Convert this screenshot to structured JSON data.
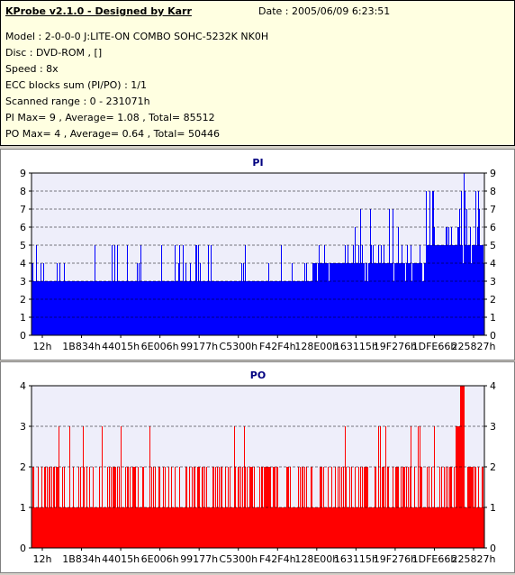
{
  "header": {
    "title": "KProbe v2.1.0 - Designed by Karr",
    "date": "Date : 2005/06/09 6:23:51",
    "lines": [
      "Model : 2-0-0-0 J:LITE-ON COMBO SOHC-5232K NK0H",
      "Disc : DVD-ROM ,  []",
      "Speed : 8x",
      "ECC blocks sum (PI/PO) : 1/1",
      "Scanned range : 0 - 231071h",
      "PI Max= 9 , Average= 1.08 , Total= 85512",
      "PO Max= 4 , Average= 0.64 , Total= 50446"
    ]
  },
  "colors": {
    "pi": "#0000ff",
    "po": "#ff0000",
    "plot_bg": "#eeeefa",
    "grid": "#808080"
  },
  "chart_data": [
    {
      "type": "bar",
      "title": "PI",
      "ylim": [
        0,
        9
      ],
      "yticks": [
        0,
        1,
        2,
        3,
        4,
        5,
        6,
        7,
        8,
        9
      ],
      "xticks": [
        "12h",
        "1B834h",
        "44015h",
        "6E006h",
        "99177h",
        "C5300h",
        "F42F4h",
        "128E00h",
        "163115h",
        "19F276h",
        "1DFE66h",
        "225827h"
      ],
      "xlim_hex": [
        "12h",
        "231071h"
      ],
      "base_level": 3,
      "max": 9,
      "average": 1.08,
      "total": 85512,
      "summary_levels": [
        {
          "from": "12h",
          "to": "163115h",
          "typical": 3,
          "peaks": 5
        },
        {
          "from": "163115h",
          "to": "1DFE66h",
          "typical": 4,
          "peaks": 7
        },
        {
          "from": "1DFE66h",
          "to": "231071h",
          "typical": 5,
          "peaks": 9
        }
      ]
    },
    {
      "type": "bar",
      "title": "PO",
      "ylim": [
        0,
        4
      ],
      "yticks": [
        0,
        1,
        2,
        3,
        4
      ],
      "xticks": [
        "12h",
        "1B834h",
        "44015h",
        "6E006h",
        "99177h",
        "C5300h",
        "F42F4h",
        "128E00h",
        "163115h",
        "19F276h",
        "1DFE66h",
        "225827h"
      ],
      "xlim_hex": [
        "12h",
        "231071h"
      ],
      "base_level": 1,
      "max": 4,
      "average": 0.64,
      "total": 50446,
      "summary_levels": [
        {
          "from": "12h",
          "to": "231071h",
          "typical": 1,
          "peaks": 3
        }
      ]
    }
  ]
}
